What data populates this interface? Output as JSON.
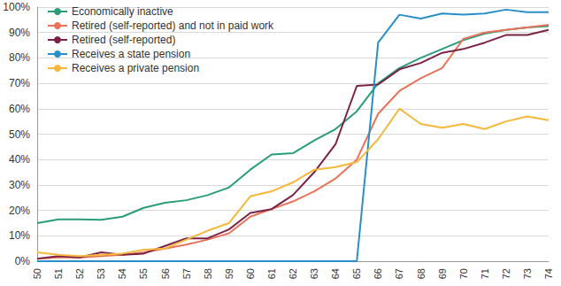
{
  "chart_data": {
    "type": "line",
    "categories": [
      "50",
      "51",
      "52",
      "53",
      "54",
      "55",
      "56",
      "57",
      "58",
      "59",
      "60",
      "61",
      "62",
      "63",
      "64",
      "65",
      "66",
      "67",
      "68",
      "69",
      "70",
      "71",
      "72",
      "73",
      "74"
    ],
    "series": [
      {
        "name": "Economically inactive",
        "color": "#2a9d78",
        "values": [
          15,
          16.5,
          16.5,
          16.3,
          17.5,
          21,
          23,
          24,
          26,
          29,
          36,
          42,
          42.5,
          47.5,
          52,
          59,
          70,
          76,
          80,
          83.5,
          87,
          89.5,
          91,
          92,
          92.5
        ]
      },
      {
        "name": "Retired (self-reported) and not in paid work",
        "color": "#e8735a",
        "values": [
          1,
          1.5,
          1.5,
          2,
          2.5,
          3.5,
          5,
          6.5,
          8.5,
          11,
          17.5,
          20.5,
          23.5,
          27.5,
          32.5,
          40,
          58,
          67,
          72,
          76,
          87.5,
          90,
          91,
          92,
          93
        ]
      },
      {
        "name": "Retired (self-reported)",
        "color": "#7b2246",
        "values": [
          1,
          2,
          1.5,
          3.5,
          2.5,
          3,
          6,
          9,
          9,
          12.5,
          19,
          20.5,
          26,
          35,
          46,
          69,
          69.5,
          75.5,
          78,
          82,
          83.5,
          86,
          89,
          89,
          91
        ]
      },
      {
        "name": "Receives a state pension",
        "color": "#2a8fc8",
        "values": [
          0,
          0,
          0,
          0,
          0,
          0,
          0,
          0,
          0,
          0,
          0,
          0,
          0,
          0,
          0,
          0,
          86,
          97,
          95.5,
          97.5,
          97,
          97.5,
          99,
          98,
          98
        ]
      },
      {
        "name": "Receives a private pension",
        "color": "#f5b83a",
        "values": [
          3.5,
          2.5,
          2,
          2.5,
          3,
          4.5,
          5,
          8.5,
          12,
          15,
          25.5,
          27.5,
          31,
          36,
          37,
          39,
          48,
          60,
          54,
          52.5,
          54,
          52,
          55,
          57,
          55.5
        ]
      }
    ],
    "ylim": [
      0,
      100
    ],
    "yticks": [
      {
        "value": 0,
        "label": "0%"
      },
      {
        "value": 10,
        "label": "10%"
      },
      {
        "value": 20,
        "label": "20%"
      },
      {
        "value": 30,
        "label": "30%"
      },
      {
        "value": 40,
        "label": "40%"
      },
      {
        "value": 50,
        "label": "50%"
      },
      {
        "value": 60,
        "label": "60%"
      },
      {
        "value": 70,
        "label": "70%"
      },
      {
        "value": 80,
        "label": "80%"
      },
      {
        "value": 90,
        "label": "90%"
      },
      {
        "value": 100,
        "label": "100%"
      }
    ],
    "grid": true,
    "legend": "upper left",
    "marker": "none",
    "line_style": "solid"
  }
}
